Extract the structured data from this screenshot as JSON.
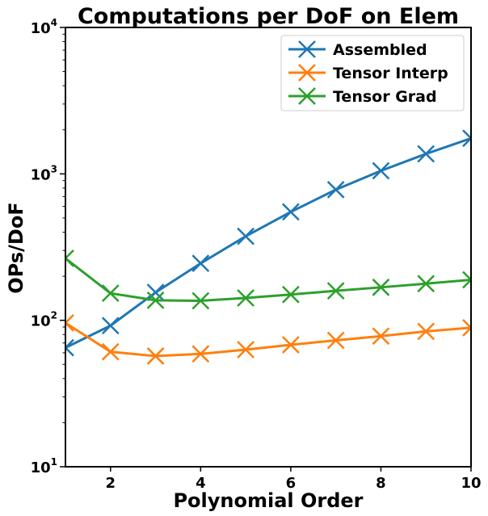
{
  "chart_data": {
    "type": "line",
    "title": "Computations per DoF on Elem",
    "xlabel": "Polynomial Order",
    "ylabel": "OPs/DoF",
    "x": [
      1,
      2,
      3,
      4,
      5,
      6,
      7,
      8,
      9,
      10
    ],
    "xlim": [
      1,
      10
    ],
    "xticks": [
      2,
      4,
      6,
      8,
      10
    ],
    "yscale": "log",
    "ylim": [
      10,
      10000
    ],
    "yticks": [
      {
        "value": 10,
        "base": "10",
        "exp": "1"
      },
      {
        "value": 100,
        "base": "10",
        "exp": "2"
      },
      {
        "value": 1000,
        "base": "10",
        "exp": "3"
      },
      {
        "value": 10000,
        "base": "10",
        "exp": "4"
      }
    ],
    "grid": false,
    "legend_position": "top-right",
    "marker": "x",
    "series": [
      {
        "name": "Assembled",
        "color": "#1f77b4",
        "values": [
          65,
          92,
          155,
          245,
          375,
          550,
          780,
          1050,
          1370,
          1750
        ]
      },
      {
        "name": "Tensor Interp",
        "color": "#ff7f0e",
        "values": [
          96,
          61,
          57,
          59,
          63,
          68,
          73,
          78,
          84,
          89
        ]
      },
      {
        "name": "Tensor Grad",
        "color": "#2ca02c",
        "values": [
          265,
          153,
          137,
          136,
          142,
          150,
          159,
          168,
          178,
          189
        ]
      }
    ]
  }
}
